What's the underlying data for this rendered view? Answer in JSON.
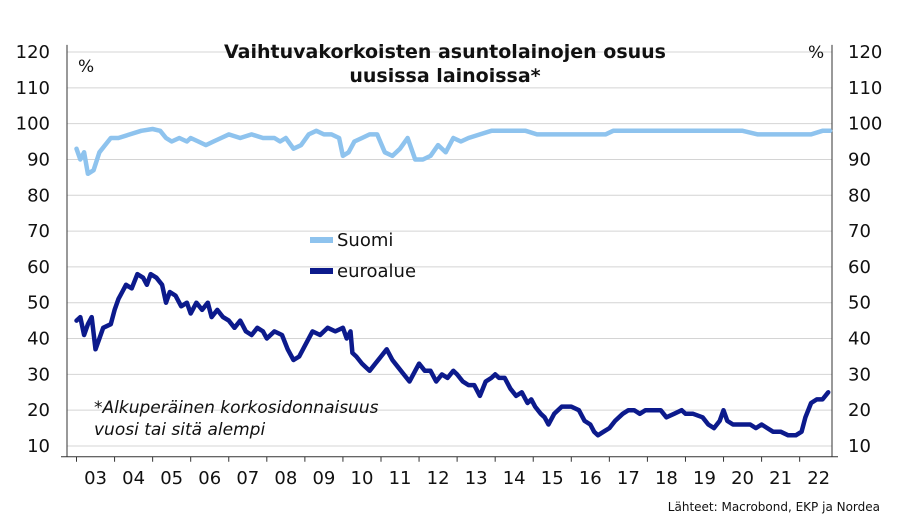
{
  "chart_data": {
    "type": "line",
    "title_lines": [
      "Vaihtuvakorkoisten asuntolainojen osuus",
      "uusissa lainoissa*"
    ],
    "unit_left": "%",
    "unit_right": "%",
    "yticks": [
      10,
      20,
      30,
      40,
      50,
      60,
      70,
      80,
      90,
      100,
      110,
      120
    ],
    "ylim": [
      7,
      122
    ],
    "xlim": [
      2002.75,
      2022.85
    ],
    "xtick_labels": [
      "03",
      "04",
      "05",
      "06",
      "07",
      "08",
      "09",
      "10",
      "11",
      "12",
      "13",
      "14",
      "15",
      "16",
      "17",
      "18",
      "19",
      "20",
      "21",
      "22"
    ],
    "grid": true,
    "legend_position": "middle-left",
    "note_lines": [
      "*Alkuperäinen korkosidonnaisuus",
      "vuosi tai sitä alempi"
    ],
    "source": "Lähteet: Macrobond, EKP ja Nordea",
    "series": [
      {
        "name": "Suomi",
        "color": "#8ec3ee",
        "points": [
          [
            2003.0,
            93
          ],
          [
            2003.1,
            90
          ],
          [
            2003.2,
            92
          ],
          [
            2003.3,
            86
          ],
          [
            2003.45,
            87
          ],
          [
            2003.6,
            92
          ],
          [
            2003.75,
            94
          ],
          [
            2003.9,
            96
          ],
          [
            2004.1,
            96
          ],
          [
            2004.4,
            97
          ],
          [
            2004.7,
            98
          ],
          [
            2005.0,
            98.5
          ],
          [
            2005.2,
            98
          ],
          [
            2005.35,
            96
          ],
          [
            2005.5,
            95
          ],
          [
            2005.7,
            96
          ],
          [
            2005.9,
            95
          ],
          [
            2006.0,
            96
          ],
          [
            2006.2,
            95
          ],
          [
            2006.4,
            94
          ],
          [
            2006.6,
            95
          ],
          [
            2006.8,
            96
          ],
          [
            2007.0,
            97
          ],
          [
            2007.3,
            96
          ],
          [
            2007.6,
            97
          ],
          [
            2007.9,
            96
          ],
          [
            2008.2,
            96
          ],
          [
            2008.35,
            95
          ],
          [
            2008.5,
            96
          ],
          [
            2008.7,
            93
          ],
          [
            2008.9,
            94
          ],
          [
            2009.1,
            97
          ],
          [
            2009.3,
            98
          ],
          [
            2009.5,
            97
          ],
          [
            2009.7,
            97
          ],
          [
            2009.9,
            96
          ],
          [
            2010.0,
            91
          ],
          [
            2010.15,
            92
          ],
          [
            2010.3,
            95
          ],
          [
            2010.5,
            96
          ],
          [
            2010.7,
            97
          ],
          [
            2010.9,
            97
          ],
          [
            2011.1,
            92
          ],
          [
            2011.3,
            91
          ],
          [
            2011.5,
            93
          ],
          [
            2011.7,
            96
          ],
          [
            2011.9,
            90
          ],
          [
            2012.1,
            90
          ],
          [
            2012.3,
            91
          ],
          [
            2012.5,
            94
          ],
          [
            2012.7,
            92
          ],
          [
            2012.9,
            96
          ],
          [
            2013.1,
            95
          ],
          [
            2013.3,
            96
          ],
          [
            2013.6,
            97
          ],
          [
            2013.9,
            98
          ],
          [
            2014.2,
            98
          ],
          [
            2014.5,
            98
          ],
          [
            2014.8,
            98
          ],
          [
            2015.1,
            97
          ],
          [
            2015.4,
            97
          ],
          [
            2015.7,
            97
          ],
          [
            2016.0,
            97
          ],
          [
            2016.3,
            97
          ],
          [
            2016.6,
            97
          ],
          [
            2016.9,
            97
          ],
          [
            2017.1,
            98
          ],
          [
            2017.4,
            98
          ],
          [
            2017.7,
            98
          ],
          [
            2018.0,
            98
          ],
          [
            2018.5,
            98
          ],
          [
            2019.0,
            98
          ],
          [
            2019.5,
            98
          ],
          [
            2020.0,
            98
          ],
          [
            2020.5,
            98
          ],
          [
            2020.9,
            97
          ],
          [
            2021.2,
            97
          ],
          [
            2021.5,
            97
          ],
          [
            2021.8,
            97
          ],
          [
            2022.0,
            97
          ],
          [
            2022.3,
            97
          ],
          [
            2022.6,
            98
          ],
          [
            2022.8,
            98
          ]
        ]
      },
      {
        "name": "euroalue",
        "color": "#0c1a8c",
        "points": [
          [
            2003.0,
            45
          ],
          [
            2003.1,
            46
          ],
          [
            2003.2,
            41
          ],
          [
            2003.3,
            44
          ],
          [
            2003.4,
            46
          ],
          [
            2003.5,
            37
          ],
          [
            2003.6,
            40
          ],
          [
            2003.7,
            43
          ],
          [
            2003.9,
            44
          ],
          [
            2004.0,
            48
          ],
          [
            2004.1,
            51
          ],
          [
            2004.2,
            53
          ],
          [
            2004.3,
            55
          ],
          [
            2004.45,
            54
          ],
          [
            2004.6,
            58
          ],
          [
            2004.75,
            57
          ],
          [
            2004.85,
            55
          ],
          [
            2004.95,
            58
          ],
          [
            2005.1,
            57
          ],
          [
            2005.25,
            55
          ],
          [
            2005.35,
            50
          ],
          [
            2005.45,
            53
          ],
          [
            2005.6,
            52
          ],
          [
            2005.75,
            49
          ],
          [
            2005.9,
            50
          ],
          [
            2006.0,
            47
          ],
          [
            2006.15,
            50
          ],
          [
            2006.3,
            48
          ],
          [
            2006.45,
            50
          ],
          [
            2006.55,
            46
          ],
          [
            2006.7,
            48
          ],
          [
            2006.85,
            46
          ],
          [
            2007.0,
            45
          ],
          [
            2007.15,
            43
          ],
          [
            2007.3,
            45
          ],
          [
            2007.45,
            42
          ],
          [
            2007.6,
            41
          ],
          [
            2007.75,
            43
          ],
          [
            2007.9,
            42
          ],
          [
            2008.0,
            40
          ],
          [
            2008.2,
            42
          ],
          [
            2008.4,
            41
          ],
          [
            2008.55,
            37
          ],
          [
            2008.7,
            34
          ],
          [
            2008.85,
            35
          ],
          [
            2009.0,
            38
          ],
          [
            2009.2,
            42
          ],
          [
            2009.4,
            41
          ],
          [
            2009.6,
            43
          ],
          [
            2009.8,
            42
          ],
          [
            2010.0,
            43
          ],
          [
            2010.1,
            40
          ],
          [
            2010.2,
            42
          ],
          [
            2010.25,
            36
          ],
          [
            2010.35,
            35
          ],
          [
            2010.5,
            33
          ],
          [
            2010.6,
            32
          ],
          [
            2010.7,
            31
          ],
          [
            2010.85,
            33
          ],
          [
            2011.0,
            35
          ],
          [
            2011.15,
            37
          ],
          [
            2011.3,
            34
          ],
          [
            2011.45,
            32
          ],
          [
            2011.6,
            30
          ],
          [
            2011.75,
            28
          ],
          [
            2011.9,
            31
          ],
          [
            2012.0,
            33
          ],
          [
            2012.15,
            31
          ],
          [
            2012.3,
            31
          ],
          [
            2012.45,
            28
          ],
          [
            2012.6,
            30
          ],
          [
            2012.75,
            29
          ],
          [
            2012.9,
            31
          ],
          [
            2013.0,
            30
          ],
          [
            2013.15,
            28
          ],
          [
            2013.3,
            27
          ],
          [
            2013.45,
            27
          ],
          [
            2013.6,
            24
          ],
          [
            2013.75,
            28
          ],
          [
            2013.9,
            29
          ],
          [
            2014.0,
            30
          ],
          [
            2014.1,
            29
          ],
          [
            2014.25,
            29
          ],
          [
            2014.4,
            26
          ],
          [
            2014.55,
            24
          ],
          [
            2014.7,
            25
          ],
          [
            2014.85,
            22
          ],
          [
            2014.95,
            23
          ],
          [
            2015.05,
            21
          ],
          [
            2015.2,
            19
          ],
          [
            2015.3,
            18
          ],
          [
            2015.4,
            16
          ],
          [
            2015.55,
            19
          ],
          [
            2015.75,
            21
          ],
          [
            2016.0,
            21
          ],
          [
            2016.2,
            20
          ],
          [
            2016.35,
            17
          ],
          [
            2016.5,
            16
          ],
          [
            2016.6,
            14
          ],
          [
            2016.7,
            13
          ],
          [
            2016.85,
            14
          ],
          [
            2017.0,
            15
          ],
          [
            2017.15,
            17
          ],
          [
            2017.35,
            19
          ],
          [
            2017.5,
            20
          ],
          [
            2017.65,
            20
          ],
          [
            2017.8,
            19
          ],
          [
            2017.95,
            20
          ],
          [
            2018.15,
            20
          ],
          [
            2018.35,
            20
          ],
          [
            2018.5,
            18
          ],
          [
            2018.7,
            19
          ],
          [
            2018.9,
            20
          ],
          [
            2019.0,
            19
          ],
          [
            2019.2,
            19
          ],
          [
            2019.45,
            18
          ],
          [
            2019.6,
            16
          ],
          [
            2019.75,
            15
          ],
          [
            2019.9,
            17
          ],
          [
            2020.0,
            20
          ],
          [
            2020.1,
            17
          ],
          [
            2020.25,
            16
          ],
          [
            2020.5,
            16
          ],
          [
            2020.7,
            16
          ],
          [
            2020.85,
            15
          ],
          [
            2021.0,
            16
          ],
          [
            2021.15,
            15
          ],
          [
            2021.3,
            14
          ],
          [
            2021.5,
            14
          ],
          [
            2021.7,
            13
          ],
          [
            2021.9,
            13
          ],
          [
            2022.05,
            14
          ],
          [
            2022.15,
            18
          ],
          [
            2022.3,
            22
          ],
          [
            2022.45,
            23
          ],
          [
            2022.6,
            23
          ],
          [
            2022.75,
            25
          ]
        ]
      }
    ]
  }
}
